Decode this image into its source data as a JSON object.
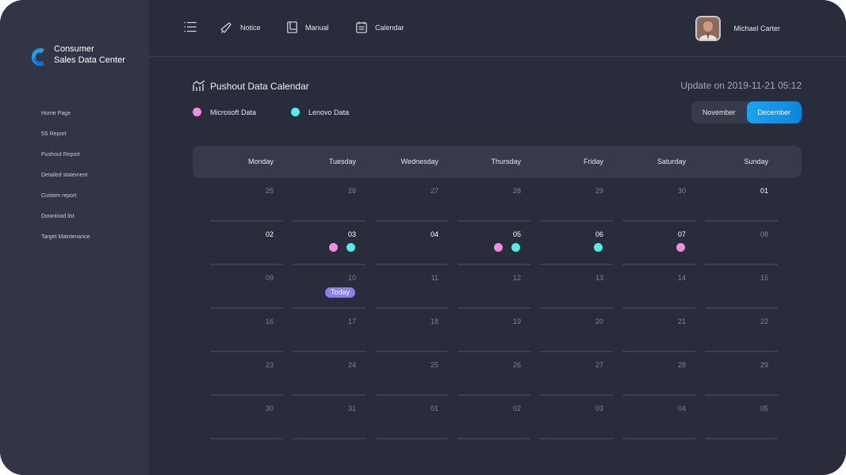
{
  "brand": {
    "line1": "Consumer",
    "line2": "Sales Data Center"
  },
  "sidebar": {
    "items": [
      "Home Page",
      "5S Report",
      "Pushout Report",
      "Detailed statement",
      "Custom report",
      "Download list",
      "Target Maintenance"
    ]
  },
  "topbar": {
    "notice": "Notice",
    "manual": "Manual",
    "calendar": "Calendar"
  },
  "user": {
    "name": "Michael Carter"
  },
  "page": {
    "title": "Pushout Data Calendar",
    "update": "Update on 2019-11-21 05:12"
  },
  "legend": {
    "microsoft": "Microsoft Data",
    "lenovo": "Lenovo Data"
  },
  "months": {
    "november": "November",
    "december": "December",
    "selected": "December"
  },
  "colors": {
    "microsoft": "#f48ce1",
    "lenovo": "#4cf0ee",
    "accent": "#0f93e8",
    "today": "#8b7ff0"
  },
  "weekdays": [
    "Monday",
    "Tuesday",
    "Wednesday",
    "Thursday",
    "Friday",
    "Saturday",
    "Sunday"
  ],
  "today_label": "Today",
  "weeks": [
    [
      {
        "d": "25",
        "cur": false
      },
      {
        "d": "26",
        "cur": false
      },
      {
        "d": "27",
        "cur": false
      },
      {
        "d": "28",
        "cur": false
      },
      {
        "d": "29",
        "cur": false
      },
      {
        "d": "30",
        "cur": false
      },
      {
        "d": "01",
        "cur": true
      }
    ],
    [
      {
        "d": "02",
        "cur": true
      },
      {
        "d": "03",
        "cur": true,
        "dots": [
          "microsoft",
          "lenovo"
        ]
      },
      {
        "d": "04",
        "cur": true
      },
      {
        "d": "05",
        "cur": true,
        "dots": [
          "microsoft",
          "lenovo"
        ]
      },
      {
        "d": "06",
        "cur": true,
        "dots": [
          "lenovo"
        ]
      },
      {
        "d": "07",
        "cur": true,
        "dots": [
          "microsoft"
        ]
      },
      {
        "d": "08",
        "cur": false
      }
    ],
    [
      {
        "d": "09",
        "cur": false
      },
      {
        "d": "10",
        "cur": false,
        "today": true
      },
      {
        "d": "11",
        "cur": false
      },
      {
        "d": "12",
        "cur": false
      },
      {
        "d": "13",
        "cur": false
      },
      {
        "d": "14",
        "cur": false
      },
      {
        "d": "15",
        "cur": false
      }
    ],
    [
      {
        "d": "16",
        "cur": false
      },
      {
        "d": "17",
        "cur": false
      },
      {
        "d": "18",
        "cur": false
      },
      {
        "d": "19",
        "cur": false
      },
      {
        "d": "20",
        "cur": false
      },
      {
        "d": "21",
        "cur": false
      },
      {
        "d": "22",
        "cur": false
      }
    ],
    [
      {
        "d": "23",
        "cur": false
      },
      {
        "d": "24",
        "cur": false
      },
      {
        "d": "25",
        "cur": false
      },
      {
        "d": "26",
        "cur": false
      },
      {
        "d": "27",
        "cur": false
      },
      {
        "d": "28",
        "cur": false
      },
      {
        "d": "29",
        "cur": false
      }
    ],
    [
      {
        "d": "30",
        "cur": false
      },
      {
        "d": "31",
        "cur": false
      },
      {
        "d": "01",
        "cur": false
      },
      {
        "d": "02",
        "cur": false
      },
      {
        "d": "03",
        "cur": false
      },
      {
        "d": "04",
        "cur": false
      },
      {
        "d": "05",
        "cur": false
      }
    ]
  ]
}
